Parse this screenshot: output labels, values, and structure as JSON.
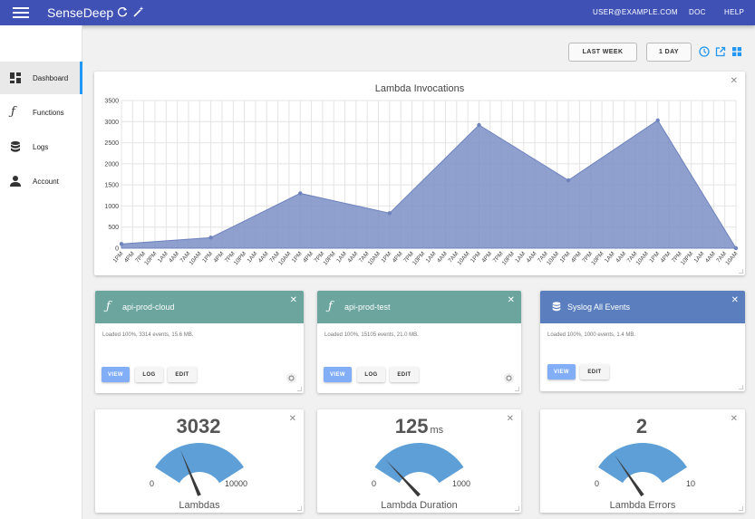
{
  "header": {
    "brand": "SenseDeep",
    "user": "USER@EXAMPLE.COM",
    "doc": "DOC",
    "help": "HELP"
  },
  "sidebar": {
    "items": [
      {
        "label": "Dashboard",
        "icon": "dashboard-icon"
      },
      {
        "label": "Functions",
        "icon": "function-icon"
      },
      {
        "label": "Logs",
        "icon": "database-icon"
      },
      {
        "label": "Account",
        "icon": "person-icon"
      }
    ]
  },
  "toolbar": {
    "range_label": "LAST WEEK",
    "period_label": "1 DAY"
  },
  "colors": {
    "header": "#3f51b5",
    "chart_fill": "#7b8fc7",
    "function_card": "#6ba59e",
    "log_card": "#5b7fbe",
    "gauge": "#5d9fd6",
    "accent": "#2196f3"
  },
  "chart_data": {
    "type": "area",
    "title": "Lambda Invocations",
    "ylim": [
      0,
      3500
    ],
    "yticks": [
      "0",
      "500",
      "1000",
      "1500",
      "2000",
      "2500",
      "3000",
      "3500"
    ],
    "xticks": [
      "1PM",
      "4PM",
      "7PM",
      "10PM",
      "1AM",
      "4AM",
      "7AM",
      "10AM",
      "1PM",
      "4PM",
      "7PM",
      "10PM",
      "1AM",
      "4AM",
      "7AM",
      "10AM",
      "1PM",
      "4PM",
      "7PM",
      "10PM",
      "1AM",
      "4AM",
      "7AM",
      "10AM",
      "1PM",
      "4PM",
      "7PM",
      "10PM",
      "1AM",
      "4AM",
      "7AM",
      "10AM",
      "1PM",
      "4PM",
      "7PM",
      "10PM",
      "1AM",
      "4AM",
      "7AM",
      "10AM",
      "1PM",
      "4PM",
      "7PM",
      "10PM",
      "1AM",
      "4AM",
      "7AM",
      "10AM",
      "1PM",
      "4PM",
      "7PM",
      "10PM",
      "1AM",
      "4AM",
      "7AM",
      "10AM"
    ],
    "points": [
      {
        "tick": 0,
        "value": 100
      },
      {
        "tick": 8,
        "value": 250
      },
      {
        "tick": 16,
        "value": 1300
      },
      {
        "tick": 24,
        "value": 830
      },
      {
        "tick": 32,
        "value": 2920
      },
      {
        "tick": 40,
        "value": 1610
      },
      {
        "tick": 48,
        "value": 3030
      },
      {
        "tick": 55,
        "value": 0
      }
    ]
  },
  "services": [
    {
      "name": "api-prod-cloud",
      "kind": "function-icon",
      "status": "Loaded 100%, 3314 events, 15.6 MB.",
      "buttons": [
        "VIEW",
        "LOG",
        "EDIT"
      ]
    },
    {
      "name": "api-prod-test",
      "kind": "function-icon",
      "status": "Loaded 100%, 15105 events, 21.0 MB.",
      "buttons": [
        "VIEW",
        "LOG",
        "EDIT"
      ]
    },
    {
      "name": "Syslog All Events",
      "kind": "database-icon",
      "status": "Loaded 100%, 1000 events, 1.4 MB.",
      "buttons": [
        "VIEW",
        "EDIT"
      ]
    }
  ],
  "gauges": [
    {
      "label": "Lambdas",
      "value": "3032",
      "unit": "",
      "min": "0",
      "max": "10000",
      "fraction": 0.3032
    },
    {
      "label": "Lambda Duration",
      "value": "125",
      "unit": "ms",
      "min": "0",
      "max": "1000",
      "fraction": 0.125
    },
    {
      "label": "Lambda Errors",
      "value": "2",
      "unit": "",
      "min": "0",
      "max": "10",
      "fraction": 0.2
    }
  ]
}
